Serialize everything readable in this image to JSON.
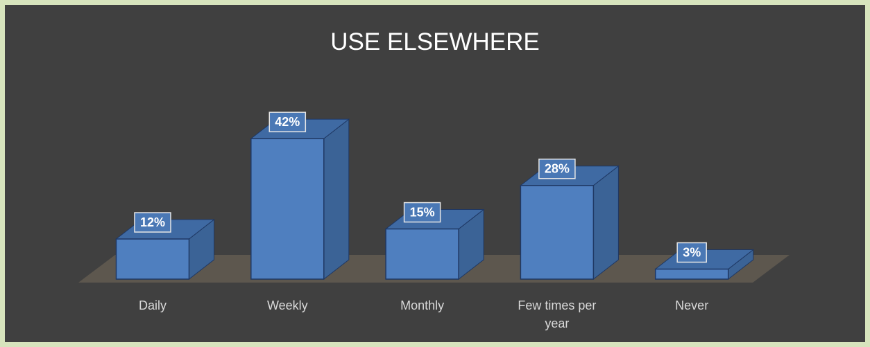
{
  "chart_data": {
    "type": "bar3d",
    "title": "USE ELSEWHERE",
    "categories": [
      "Daily",
      "Weekly",
      "Monthly",
      "Few times per year",
      "Never"
    ],
    "values": [
      12,
      42,
      15,
      28,
      3
    ],
    "value_labels": [
      "12%",
      "42%",
      "15%",
      "28%",
      "3%"
    ],
    "color": "#4f7fbf"
  }
}
